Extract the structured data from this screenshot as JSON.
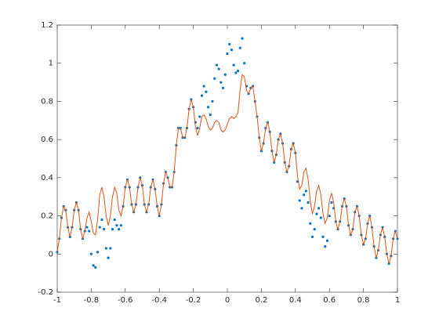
{
  "chart_data": {
    "type": "line",
    "x": [
      -1,
      -0.9875,
      -0.975,
      -0.9625,
      -0.95,
      -0.9375,
      -0.925,
      -0.9125,
      -0.9,
      -0.8875,
      -0.875,
      -0.8625,
      -0.85,
      -0.8375,
      -0.825,
      -0.8125,
      -0.8,
      -0.7875,
      -0.775,
      -0.7625,
      -0.75,
      -0.7375,
      -0.725,
      -0.7125,
      -0.7,
      -0.6875,
      -0.675,
      -0.6625,
      -0.65,
      -0.6375,
      -0.625,
      -0.6125,
      -0.6,
      -0.5875,
      -0.575,
      -0.5625,
      -0.55,
      -0.5375,
      -0.525,
      -0.5125,
      -0.5,
      -0.4875,
      -0.475,
      -0.4625,
      -0.45,
      -0.4375,
      -0.425,
      -0.4125,
      -0.4,
      -0.3875,
      -0.375,
      -0.3625,
      -0.35,
      -0.3375,
      -0.325,
      -0.3125,
      -0.3,
      -0.2875,
      -0.275,
      -0.2625,
      -0.25,
      -0.2375,
      -0.225,
      -0.2125,
      -0.2,
      -0.1875,
      -0.175,
      -0.1625,
      -0.15,
      -0.1375,
      -0.125,
      -0.1125,
      -0.1,
      -0.0875,
      -0.075,
      -0.0625,
      -0.05,
      -0.0375,
      -0.025,
      -0.0125,
      0,
      0.0125,
      0.025,
      0.0375,
      0.05,
      0.0625,
      0.075,
      0.0875,
      0.1,
      0.1125,
      0.125,
      0.1375,
      0.15,
      0.1625,
      0.175,
      0.1875,
      0.2,
      0.2125,
      0.225,
      0.2375,
      0.25,
      0.2625,
      0.275,
      0.2875,
      0.3,
      0.3125,
      0.325,
      0.3375,
      0.35,
      0.3625,
      0.375,
      0.3875,
      0.4,
      0.4125,
      0.425,
      0.4375,
      0.45,
      0.4625,
      0.475,
      0.4875,
      0.5,
      0.5125,
      0.525,
      0.5375,
      0.55,
      0.5625,
      0.575,
      0.5875,
      0.6,
      0.6125,
      0.625,
      0.6375,
      0.65,
      0.6625,
      0.675,
      0.6875,
      0.7,
      0.7125,
      0.725,
      0.7375,
      0.75,
      0.7625,
      0.775,
      0.7875,
      0.8,
      0.8125,
      0.825,
      0.8375,
      0.85,
      0.8625,
      0.875,
      0.8875,
      0.9,
      0.9125,
      0.925,
      0.9375,
      0.95,
      0.9625,
      0.975,
      0.9875,
      1
    ],
    "series": [
      {
        "color": "#0072bd",
        "mode": "markers",
        "values": [
          0.01,
          0.08,
          0.19,
          0.25,
          0.23,
          0.14,
          0.09,
          0.14,
          0.23,
          0.27,
          0.23,
          0.13,
          0.08,
          0.12,
          0.14,
          0.12,
          0.0,
          -0.06,
          -0.07,
          0.01,
          0.14,
          0.18,
          0.13,
          0.03,
          -0.02,
          0.03,
          0.13,
          0.18,
          0.15,
          0.13,
          0.15,
          0.25,
          0.35,
          0.39,
          0.35,
          0.26,
          0.22,
          0.26,
          0.35,
          0.4,
          0.36,
          0.26,
          0.22,
          0.26,
          0.35,
          0.39,
          0.34,
          0.25,
          0.2,
          0.26,
          0.37,
          0.43,
          0.4,
          0.35,
          0.35,
          0.43,
          0.57,
          0.66,
          0.66,
          0.61,
          0.61,
          0.66,
          0.76,
          0.81,
          0.77,
          0.69,
          0.66,
          0.72,
          0.83,
          0.88,
          0.85,
          0.77,
          0.73,
          0.8,
          0.92,
          0.99,
          0.97,
          0.9,
          0.87,
          0.94,
          1.05,
          1.1,
          1.07,
          0.99,
          0.95,
          0.96,
          1.08,
          1.13,
          1.0,
          0.88,
          0.84,
          0.87,
          0.88,
          0.8,
          0.72,
          0.61,
          0.54,
          0.58,
          0.66,
          0.69,
          0.64,
          0.54,
          0.48,
          0.52,
          0.6,
          0.63,
          0.58,
          0.48,
          0.43,
          0.46,
          0.55,
          0.58,
          0.53,
          0.38,
          0.28,
          0.24,
          0.31,
          0.33,
          0.27,
          0.16,
          0.09,
          0.13,
          0.21,
          0.24,
          0.19,
          0.09,
          0.04,
          0.07,
          0.2,
          0.27,
          0.24,
          0.17,
          0.13,
          0.17,
          0.25,
          0.29,
          0.25,
          0.15,
          0.1,
          0.13,
          0.22,
          0.25,
          0.2,
          0.1,
          0.05,
          0.08,
          0.16,
          0.2,
          0.14,
          0.04,
          -0.02,
          0.02,
          0.1,
          0.14,
          0.09,
          0.0,
          -0.05,
          -0.01,
          0.08,
          0.12,
          0.08
        ]
      },
      {
        "color": "#d95319",
        "mode": "line",
        "values": [
          0.01,
          0.08,
          0.19,
          0.25,
          0.23,
          0.14,
          0.09,
          0.14,
          0.23,
          0.27,
          0.23,
          0.13,
          0.08,
          0.12,
          0.19,
          0.22,
          0.17,
          0.11,
          0.1,
          0.18,
          0.31,
          0.35,
          0.3,
          0.2,
          0.15,
          0.2,
          0.3,
          0.35,
          0.32,
          0.23,
          0.2,
          0.25,
          0.35,
          0.39,
          0.35,
          0.26,
          0.22,
          0.26,
          0.35,
          0.4,
          0.36,
          0.26,
          0.22,
          0.26,
          0.35,
          0.39,
          0.34,
          0.25,
          0.2,
          0.26,
          0.37,
          0.43,
          0.4,
          0.35,
          0.35,
          0.43,
          0.57,
          0.66,
          0.66,
          0.61,
          0.61,
          0.66,
          0.76,
          0.81,
          0.77,
          0.67,
          0.62,
          0.66,
          0.72,
          0.73,
          0.71,
          0.67,
          0.65,
          0.66,
          0.69,
          0.7,
          0.69,
          0.65,
          0.64,
          0.65,
          0.68,
          0.71,
          0.72,
          0.71,
          0.72,
          0.74,
          0.86,
          0.94,
          0.93,
          0.86,
          0.84,
          0.87,
          0.88,
          0.8,
          0.72,
          0.61,
          0.54,
          0.58,
          0.66,
          0.69,
          0.64,
          0.54,
          0.48,
          0.52,
          0.6,
          0.63,
          0.58,
          0.48,
          0.43,
          0.46,
          0.55,
          0.58,
          0.53,
          0.41,
          0.34,
          0.36,
          0.43,
          0.45,
          0.39,
          0.28,
          0.21,
          0.25,
          0.33,
          0.36,
          0.31,
          0.21,
          0.16,
          0.19,
          0.28,
          0.32,
          0.27,
          0.17,
          0.13,
          0.17,
          0.25,
          0.29,
          0.25,
          0.15,
          0.1,
          0.13,
          0.22,
          0.25,
          0.2,
          0.1,
          0.05,
          0.08,
          0.16,
          0.2,
          0.14,
          0.04,
          -0.02,
          0.02,
          0.1,
          0.14,
          0.09,
          0.0,
          -0.05,
          -0.01,
          0.08,
          0.12,
          0.08
        ]
      }
    ],
    "xlim": [
      -1,
      1
    ],
    "xticks": [
      -1,
      -0.8,
      -0.6,
      -0.4,
      -0.2,
      0,
      0.2,
      0.4,
      0.6,
      0.8,
      1
    ],
    "ylim": [
      -0.2,
      1.2
    ],
    "yticks": [
      -0.2,
      0,
      0.2,
      0.4,
      0.6,
      0.8,
      1,
      1.2
    ],
    "grid": false,
    "box": true
  }
}
